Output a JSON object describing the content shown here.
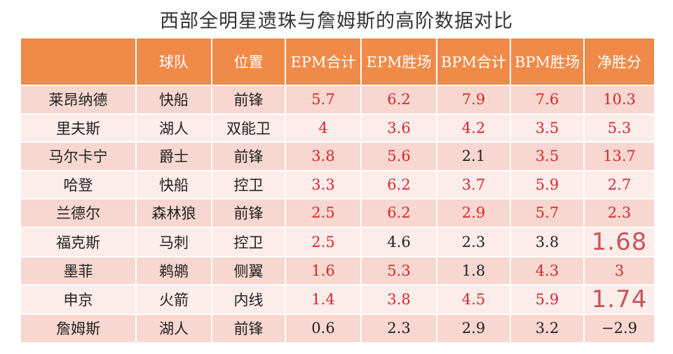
{
  "title": "西部全明星遗珠与詹姆斯的高阶数据对比",
  "headers": [
    "",
    "球队",
    "位置",
    "EPM合计",
    "EPM胜场",
    "BPM合计",
    "BPM胜场",
    "净胜分"
  ],
  "rows": [
    {
      "name": "莱昂纳德",
      "team": "快船",
      "pos": "前锋",
      "epm_total": "5.7",
      "epm_wins": "6.2",
      "bpm_total": "7.9",
      "bpm_wins": "7.6",
      "net": "10.3"
    },
    {
      "name": "里夫斯",
      "team": "湖人",
      "pos": "双能卫",
      "epm_total": "4",
      "epm_wins": "3.6",
      "bpm_total": "4.2",
      "bpm_wins": "3.5",
      "net": "5.3"
    },
    {
      "name": "马尔卡宁",
      "team": "爵士",
      "pos": "前锋",
      "epm_total": "3.8",
      "epm_wins": "5.6",
      "bpm_total": "2.1",
      "bpm_wins": "3.5",
      "net": "13.7"
    },
    {
      "name": "哈登",
      "team": "快船",
      "pos": "控卫",
      "epm_total": "3.3",
      "epm_wins": "6.2",
      "bpm_total": "3.7",
      "bpm_wins": "5.9",
      "net": "2.7"
    },
    {
      "name": "兰德尔",
      "team": "森林狼",
      "pos": "前锋",
      "epm_total": "2.5",
      "epm_wins": "6.2",
      "bpm_total": "2.9",
      "bpm_wins": "5.7",
      "net": "2.3"
    },
    {
      "name": "福克斯",
      "team": "马刺",
      "pos": "控卫",
      "epm_total": "2.5",
      "epm_wins": "4.6",
      "bpm_total": "2.3",
      "bpm_wins": "3.8",
      "net": "1.68"
    },
    {
      "name": "墨菲",
      "team": "鹈鹕",
      "pos": "侧翼",
      "epm_total": "1.6",
      "epm_wins": "5.3",
      "bpm_total": "1.8",
      "bpm_wins": "4.3",
      "net": "3"
    },
    {
      "name": "申京",
      "team": "火箭",
      "pos": "内线",
      "epm_total": "1.4",
      "epm_wins": "3.8",
      "bpm_total": "4.5",
      "bpm_wins": "5.9",
      "net": "1.74"
    },
    {
      "name": "詹姆斯",
      "team": "湖人",
      "pos": "前锋",
      "epm_total": "0.6",
      "epm_wins": "2.3",
      "bpm_total": "2.9",
      "bpm_wins": "3.2",
      "net": "−2.9"
    }
  ],
  "colors": {
    "header_bg": "#f08a48",
    "row_odd": "#f7d7cf",
    "row_even": "#fcecea",
    "value_red": "#d8262b",
    "value_black": "#222222",
    "overlay_pink": "#c8545b"
  }
}
